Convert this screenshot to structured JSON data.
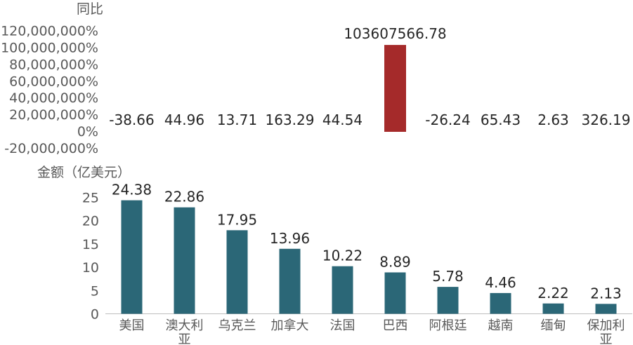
{
  "chart_data": [
    {
      "type": "bar",
      "title": "",
      "ylabel": "同比",
      "ylim": [
        -20000000,
        120000000
      ],
      "yticks": [
        "120,000,000%",
        "100,000,000%",
        "80,000,000%",
        "60,000,000%",
        "40,000,000%",
        "20,000,000%",
        "0%",
        "-20,000,000%"
      ],
      "categories": [
        "美国",
        "澳大利亚",
        "乌克兰",
        "加拿大",
        "法国",
        "巴西",
        "阿根廷",
        "越南",
        "缅甸",
        "保加利亚"
      ],
      "values": [
        -38.66,
        44.96,
        13.71,
        163.29,
        44.54,
        103607566.78,
        -26.24,
        65.43,
        2.63,
        326.19
      ],
      "value_labels": [
        "-38.66",
        "44.96",
        "13.71",
        "163.29",
        "44.54",
        "103607566.78",
        "-26.24",
        "65.43",
        "2.63",
        "326.19"
      ],
      "color": "#A52A2A"
    },
    {
      "type": "bar",
      "title": "",
      "ylabel": "金额（亿美元）",
      "ylim": [
        0,
        25
      ],
      "yticks": [
        "25",
        "20",
        "15",
        "10",
        "5",
        "0"
      ],
      "categories": [
        "美国",
        "澳大利亚",
        "乌克兰",
        "加拿大",
        "法国",
        "巴西",
        "阿根廷",
        "越南",
        "缅甸",
        "保加利亚"
      ],
      "category_lines": [
        [
          "美国"
        ],
        [
          "澳大利",
          "亚"
        ],
        [
          "乌克兰"
        ],
        [
          "加拿大"
        ],
        [
          "法国"
        ],
        [
          "巴西"
        ],
        [
          "阿根廷"
        ],
        [
          "越南"
        ],
        [
          "缅甸"
        ],
        [
          "保加利",
          "亚"
        ]
      ],
      "values": [
        24.38,
        22.86,
        17.95,
        13.96,
        10.22,
        8.89,
        5.78,
        4.46,
        2.22,
        2.13
      ],
      "value_labels": [
        "24.38",
        "22.86",
        "17.95",
        "13.96",
        "10.22",
        "8.89",
        "5.78",
        "4.46",
        "2.22",
        "2.13"
      ],
      "color": "#2B6777"
    }
  ]
}
